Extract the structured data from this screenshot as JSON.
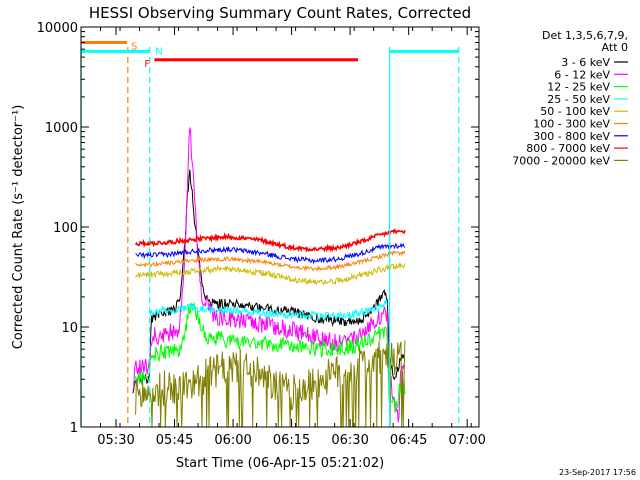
{
  "chart_data": {
    "type": "line",
    "title": "HESSI Observing Summary Count Rates, Corrected",
    "xlabel": "Start Time (06-Apr-15 05:21:02)",
    "ylabel": "Corrected Count Rate (s⁻¹ detector⁻¹)",
    "y_scale": "log",
    "ylim": [
      1,
      10000
    ],
    "xlim_minutes_after_0521": [
      0,
      102
    ],
    "x_tick_labels": [
      "05:30",
      "05:45",
      "06:00",
      "06:15",
      "06:30",
      "06:45",
      "07:00"
    ],
    "x_tick_minutes": [
      8.97,
      23.97,
      38.97,
      53.97,
      68.97,
      83.97,
      98.97
    ],
    "y_tick_labels": [
      "1",
      "10",
      "100",
      "1000",
      "10000"
    ],
    "y_tick_values": [
      1,
      10,
      100,
      1000,
      10000
    ],
    "legend": {
      "placement": "right",
      "header": [
        "Det 1,3,5,6,7,9,",
        "Att 0"
      ],
      "entries": [
        {
          "label": "3 - 6 keV",
          "color": "#000000"
        },
        {
          "label": "6 - 12 keV",
          "color": "#ff00ff"
        },
        {
          "label": "12 - 25 keV",
          "color": "#00ff00"
        },
        {
          "label": "25 - 50 keV",
          "color": "#00ffff"
        },
        {
          "label": "50 - 100 keV",
          "color": "#ccbb00"
        },
        {
          "label": "100 - 300 keV",
          "color": "#ff7f00"
        },
        {
          "label": "300 - 800 keV",
          "color": "#0000ff"
        },
        {
          "label": "800 - 7000 keV",
          "color": "#ff0000"
        },
        {
          "label": "7000 - 20000 keV",
          "color": "#807f00"
        }
      ]
    },
    "annotations": [
      {
        "label": "S",
        "color": "#ff7f00",
        "start_min": 0,
        "end_min": 11.8,
        "level": 7000
      },
      {
        "label": "N",
        "color": "#00ffff",
        "start_min": 0,
        "end_min": 17.5,
        "level": 5700
      },
      {
        "label": "N",
        "color": "#00ffff",
        "start_min": 79.1,
        "end_min": 96.8,
        "level": 5700
      },
      {
        "label": "F",
        "color": "#ff0000",
        "start_min": 18.8,
        "end_min": 71.0,
        "level": 4700
      }
    ],
    "vertical_markers": [
      {
        "color": "#ff7f00",
        "minute": 12.0,
        "style": "dashed"
      },
      {
        "color": "#00ffff",
        "minute": 17.6,
        "style": "dashed"
      },
      {
        "color": "#00ffff",
        "minute": 96.8,
        "style": "dashed"
      },
      {
        "color": "#00ffff",
        "minute": 0,
        "style": "solid"
      },
      {
        "color": "#00ffff",
        "minute": 79.1,
        "style": "solid"
      }
    ],
    "series": [
      {
        "name": "3 - 6 keV",
        "color": "#000000",
        "noise": 0.05,
        "points": [
          [
            13.3,
            2
          ],
          [
            14,
            3
          ],
          [
            16,
            3
          ],
          [
            17.5,
            3
          ],
          [
            18,
            12
          ],
          [
            21,
            14
          ],
          [
            24,
            14.5
          ],
          [
            25.5,
            20
          ],
          [
            26.5,
            60
          ],
          [
            27.3,
            200
          ],
          [
            27.8,
            360
          ],
          [
            28.4,
            240
          ],
          [
            29,
            130
          ],
          [
            30,
            55
          ],
          [
            31,
            28
          ],
          [
            32,
            20
          ],
          [
            34,
            17
          ],
          [
            38,
            17
          ],
          [
            45,
            16
          ],
          [
            55,
            14
          ],
          [
            62,
            12
          ],
          [
            68,
            11
          ],
          [
            72,
            12
          ],
          [
            75,
            15
          ],
          [
            77.3,
            22
          ],
          [
            78.5,
            20
          ],
          [
            79,
            5
          ],
          [
            80.5,
            3
          ],
          [
            82,
            5
          ],
          [
            83,
            5
          ]
        ]
      },
      {
        "name": "6 - 12 keV",
        "color": "#ff00ff",
        "noise": 0.09,
        "points": [
          [
            13.3,
            2.5
          ],
          [
            14,
            4
          ],
          [
            16,
            4
          ],
          [
            17.5,
            4
          ],
          [
            18,
            8
          ],
          [
            22,
            8.5
          ],
          [
            25,
            9.5
          ],
          [
            26,
            20
          ],
          [
            27,
            120
          ],
          [
            27.5,
            500
          ],
          [
            27.9,
            950
          ],
          [
            28.5,
            500
          ],
          [
            29.2,
            150
          ],
          [
            30,
            50
          ],
          [
            31,
            20
          ],
          [
            34,
            13
          ],
          [
            40,
            12
          ],
          [
            50,
            10
          ],
          [
            58,
            8.5
          ],
          [
            62,
            7.5
          ],
          [
            66,
            7
          ],
          [
            70,
            8
          ],
          [
            74,
            10
          ],
          [
            77.3,
            14
          ],
          [
            78.5,
            12
          ],
          [
            79,
            4
          ],
          [
            80.5,
            1.5
          ],
          [
            81.5,
            1.3
          ],
          [
            82,
            4
          ],
          [
            83,
            3.5
          ]
        ]
      },
      {
        "name": "12 - 25 keV",
        "color": "#00ff00",
        "noise": 0.08,
        "points": [
          [
            14,
            3
          ],
          [
            16,
            3
          ],
          [
            17.5,
            3.5
          ],
          [
            18,
            5.5
          ],
          [
            22,
            5.5
          ],
          [
            25,
            6
          ],
          [
            26.5,
            8
          ],
          [
            27.5,
            14
          ],
          [
            28.5,
            18
          ],
          [
            30,
            12
          ],
          [
            32,
            8
          ],
          [
            36,
            7.5
          ],
          [
            45,
            7
          ],
          [
            55,
            6.5
          ],
          [
            62,
            6
          ],
          [
            66,
            6
          ],
          [
            70,
            6.5
          ],
          [
            74,
            7.5
          ],
          [
            77.3,
            9
          ],
          [
            78.5,
            8
          ],
          [
            79,
            2
          ],
          [
            81,
            1.5
          ],
          [
            82,
            3
          ],
          [
            83,
            2.5
          ]
        ]
      },
      {
        "name": "25 - 50 keV",
        "color": "#00ffff",
        "noise": 0.04,
        "points": [
          [
            17.6,
            14
          ],
          [
            22,
            14.5
          ],
          [
            28,
            15.5
          ],
          [
            35,
            15
          ],
          [
            45,
            14
          ],
          [
            55,
            13.2
          ],
          [
            62,
            13
          ],
          [
            68,
            13
          ],
          [
            72,
            14
          ],
          [
            76,
            15
          ],
          [
            77.3,
            17
          ],
          [
            78.6,
            17.5
          ]
        ]
      },
      {
        "name": "50 - 100 keV",
        "color": "#ccbb00",
        "noise": 0.03,
        "points": [
          [
            14,
            33
          ],
          [
            22,
            34
          ],
          [
            30,
            37
          ],
          [
            38,
            38
          ],
          [
            46,
            35
          ],
          [
            54,
            30
          ],
          [
            60,
            28
          ],
          [
            66,
            29
          ],
          [
            72,
            33
          ],
          [
            76,
            37
          ],
          [
            80,
            40
          ],
          [
            83,
            41
          ]
        ]
      },
      {
        "name": "100 - 300 keV",
        "color": "#ff7f00",
        "noise": 0.02,
        "points": [
          [
            14,
            42
          ],
          [
            22,
            43
          ],
          [
            30,
            47
          ],
          [
            38,
            48
          ],
          [
            46,
            45
          ],
          [
            54,
            40
          ],
          [
            60,
            38
          ],
          [
            66,
            40
          ],
          [
            72,
            45
          ],
          [
            76,
            50
          ],
          [
            80,
            55
          ],
          [
            83,
            55
          ]
        ]
      },
      {
        "name": "300 - 800 keV",
        "color": "#0000ff",
        "noise": 0.025,
        "points": [
          [
            14,
            52
          ],
          [
            22,
            53
          ],
          [
            30,
            58
          ],
          [
            38,
            60
          ],
          [
            46,
            55
          ],
          [
            54,
            48
          ],
          [
            60,
            46
          ],
          [
            66,
            48
          ],
          [
            72,
            55
          ],
          [
            76,
            62
          ],
          [
            80,
            65
          ],
          [
            83,
            65
          ]
        ]
      },
      {
        "name": "800 - 7000 keV",
        "color": "#ff0000",
        "noise": 0.02,
        "points": [
          [
            14,
            68
          ],
          [
            22,
            70
          ],
          [
            30,
            76
          ],
          [
            38,
            80
          ],
          [
            46,
            74
          ],
          [
            54,
            62
          ],
          [
            60,
            60
          ],
          [
            66,
            62
          ],
          [
            72,
            72
          ],
          [
            76,
            82
          ],
          [
            80,
            90
          ],
          [
            83,
            90
          ]
        ]
      },
      {
        "name": "7000 - 20000 keV",
        "color": "#807f00",
        "noise": 0.18,
        "points": [
          [
            14,
            2
          ],
          [
            18,
            2.2
          ],
          [
            22,
            2.5
          ],
          [
            26,
            2.5
          ],
          [
            30,
            3
          ],
          [
            34,
            3.5
          ],
          [
            38,
            4
          ],
          [
            42,
            4
          ],
          [
            46,
            3.2
          ],
          [
            50,
            2.6
          ],
          [
            54,
            2.2
          ],
          [
            58,
            2.5
          ],
          [
            62,
            3
          ],
          [
            66,
            3.5
          ],
          [
            70,
            4
          ],
          [
            74,
            4.5
          ],
          [
            78,
            5
          ],
          [
            80,
            4.5
          ],
          [
            83,
            5
          ]
        ]
      }
    ]
  },
  "footer": {
    "date_stamp": "23-Sep-2017 17:56"
  }
}
